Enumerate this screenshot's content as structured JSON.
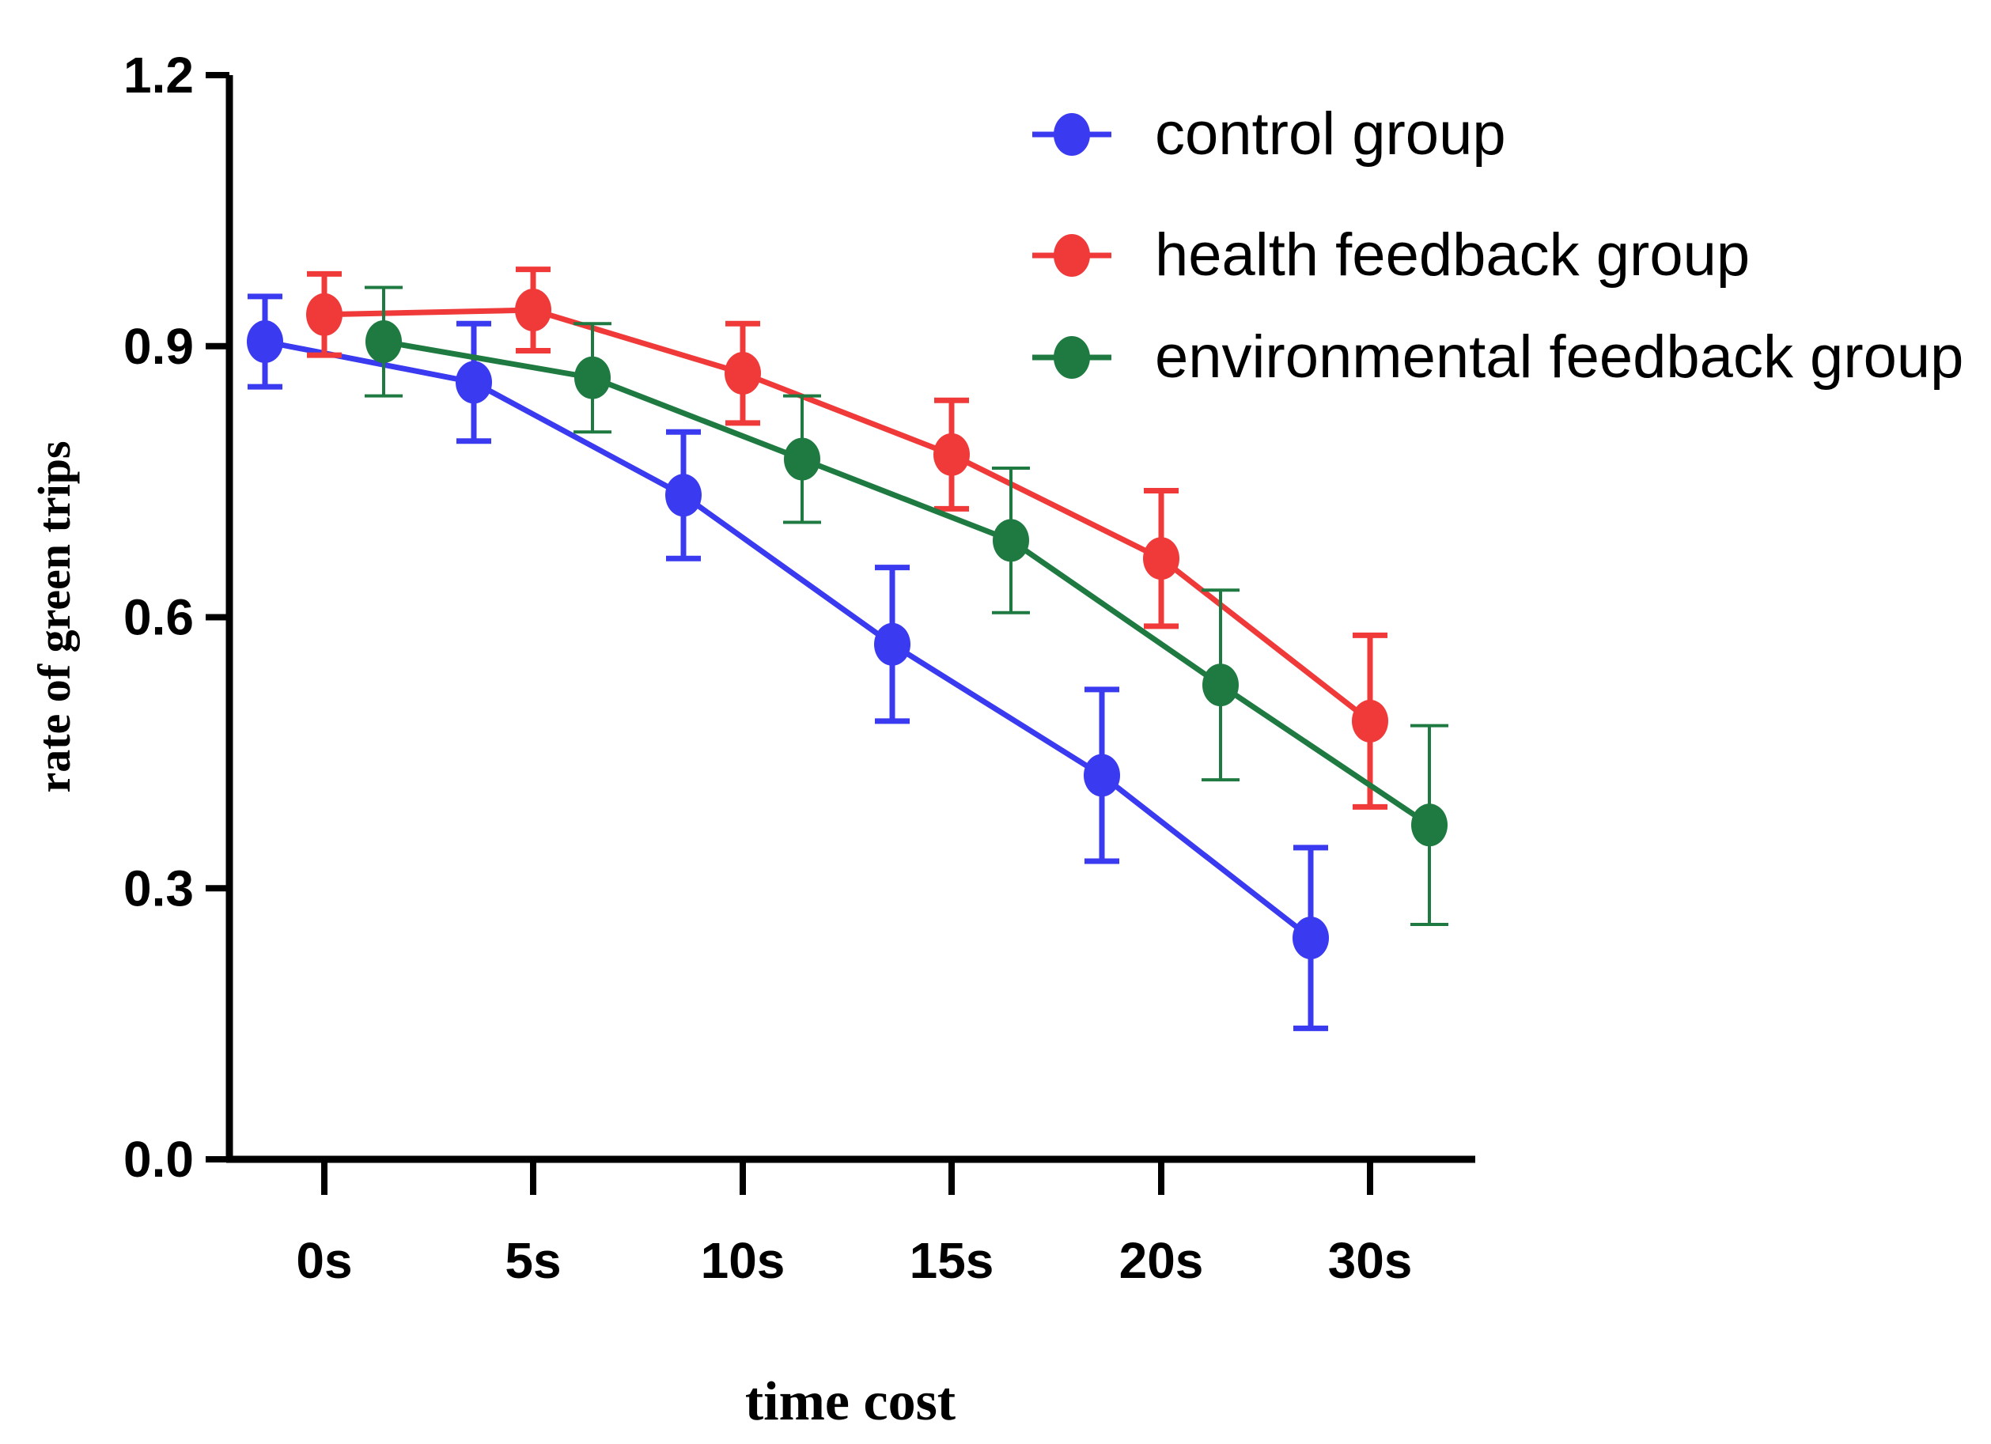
{
  "chart_data": {
    "type": "line",
    "title": "",
    "xlabel": "time cost",
    "ylabel": "rate of green trips",
    "categories": [
      "0s",
      "5s",
      "10s",
      "15s",
      "20s",
      "30s"
    ],
    "ylim": [
      0,
      1.2
    ],
    "yticks": [
      0.0,
      0.3,
      0.6,
      0.9,
      1.2
    ],
    "ytick_labels": [
      "0.0",
      "0.3",
      "0.6",
      "0.9",
      "1.2"
    ],
    "grid": false,
    "legend_position": "top-right",
    "series": [
      {
        "name": "control group",
        "color": "#3a3af0",
        "values": [
          0.905,
          0.86,
          0.735,
          0.57,
          0.425,
          0.245
        ],
        "errors": [
          0.05,
          0.065,
          0.07,
          0.085,
          0.095,
          0.1
        ]
      },
      {
        "name": "health feedback group",
        "color": "#f03a3a",
        "values": [
          0.935,
          0.94,
          0.87,
          0.78,
          0.665,
          0.485
        ],
        "errors": [
          0.045,
          0.045,
          0.055,
          0.06,
          0.075,
          0.095
        ]
      },
      {
        "name": "environmental feedback group",
        "color": "#1e7a40",
        "values": [
          0.905,
          0.865,
          0.775,
          0.685,
          0.525,
          0.37
        ],
        "errors": [
          0.06,
          0.06,
          0.07,
          0.08,
          0.105,
          0.11
        ]
      }
    ]
  }
}
